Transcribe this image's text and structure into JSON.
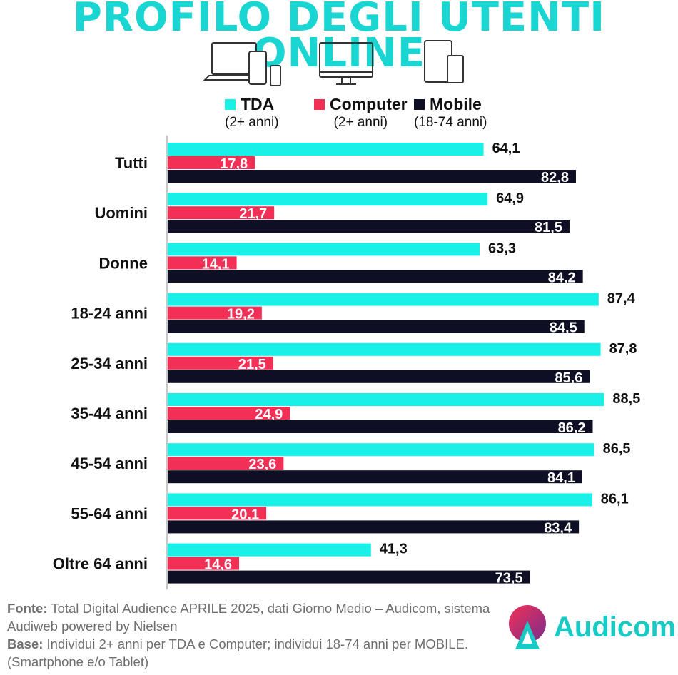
{
  "title": "PROFILO DEGLI UTENTI ONLINE",
  "icons": [
    "laptop-tablet-phone-icon",
    "monitor-icon",
    "tablet-phone-icon"
  ],
  "legend": [
    {
      "name": "TDA",
      "sub": "(2+ anni)",
      "color": "#19f0e8"
    },
    {
      "name": "Computer",
      "sub": "(2+ anni)",
      "color": "#f23056"
    },
    {
      "name": "Mobile",
      "sub": "(18-74 anni)",
      "color": "#0e0f24"
    }
  ],
  "chart_data": {
    "type": "bar",
    "orientation": "horizontal",
    "categories": [
      "Tutti",
      "Uomini",
      "Donne",
      "18-24 anni",
      "25-34 anni",
      "35-44 anni",
      "45-54 anni",
      "55-64 anni",
      "Oltre 64 anni"
    ],
    "series": [
      {
        "name": "TDA",
        "color": "#19f0e8",
        "values": [
          64.1,
          64.9,
          63.3,
          87.4,
          87.8,
          88.5,
          86.5,
          86.1,
          41.3
        ],
        "labels": [
          "64,1",
          "64,9",
          "63,3",
          "87,4",
          "87,8",
          "88,5",
          "86,5",
          "86,1",
          "41,3"
        ]
      },
      {
        "name": "Computer",
        "color": "#f23056",
        "values": [
          17.8,
          21.7,
          14.1,
          19.2,
          21.5,
          24.9,
          23.6,
          20.1,
          14.6
        ],
        "labels": [
          "17,8",
          "21,7",
          "14,1",
          "19,2",
          "21,5",
          "24,9",
          "23,6",
          "20,1",
          "14,6"
        ]
      },
      {
        "name": "Mobile",
        "color": "#0e0f24",
        "values": [
          82.8,
          81.5,
          84.2,
          84.5,
          85.6,
          86.2,
          84.1,
          83.4,
          73.5
        ],
        "labels": [
          "82,8",
          "81,5",
          "84,2",
          "84,5",
          "85,6",
          "86,2",
          "84,1",
          "83,4",
          "73,5"
        ]
      }
    ],
    "xlim": [
      0,
      100
    ],
    "grid": false,
    "legend_position": "top"
  },
  "footer": {
    "fonte_label": "Fonte:",
    "fonte_text": "Total Digital Audience APRILE 2025, dati Giorno Medio – Audicom, sistema Audiweb powered by Nielsen",
    "base_label": "Base:",
    "base_text": "Individui 2+ anni per TDA e Computer; individui 18-74 anni per MOBILE.(Smartphone e/o Tablet)"
  },
  "logo_text": "Audicom"
}
